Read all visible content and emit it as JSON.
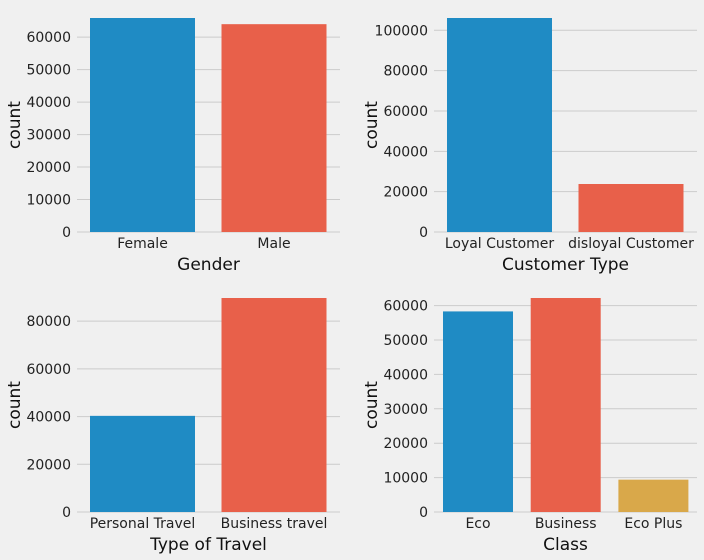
{
  "chart_data": [
    {
      "type": "bar",
      "xlabel": "Gender",
      "ylabel": "count",
      "categories": [
        "Female",
        "Male"
      ],
      "values": [
        65900,
        64000
      ],
      "colors": [
        "#1f8bc4",
        "#e8604a"
      ],
      "ylim": [
        0,
        65900
      ],
      "yticks": [
        0,
        10000,
        20000,
        30000,
        40000,
        50000,
        60000
      ],
      "grid": true
    },
    {
      "type": "bar",
      "xlabel": "Customer Type",
      "ylabel": "count",
      "categories": [
        "Loyal Customer",
        "disloyal Customer"
      ],
      "values": [
        106100,
        23800
      ],
      "colors": [
        "#1f8bc4",
        "#e8604a"
      ],
      "ylim": [
        0,
        106100
      ],
      "yticks": [
        0,
        20000,
        40000,
        60000,
        80000,
        100000
      ],
      "grid": true
    },
    {
      "type": "bar",
      "xlabel": "Type of Travel",
      "ylabel": "count",
      "categories": [
        "Personal Travel",
        "Business travel"
      ],
      "values": [
        40300,
        89700
      ],
      "colors": [
        "#1f8bc4",
        "#e8604a"
      ],
      "ylim": [
        0,
        89700
      ],
      "yticks": [
        0,
        20000,
        40000,
        60000,
        80000
      ],
      "grid": true
    },
    {
      "type": "bar",
      "xlabel": "Class",
      "ylabel": "count",
      "categories": [
        "Eco",
        "Business",
        "Eco Plus"
      ],
      "values": [
        58300,
        62200,
        9400
      ],
      "colors": [
        "#1f8bc4",
        "#e8604a",
        "#d9a84a"
      ],
      "ylim": [
        0,
        62200
      ],
      "yticks": [
        0,
        10000,
        20000,
        30000,
        40000,
        50000,
        60000
      ],
      "grid": true
    }
  ]
}
